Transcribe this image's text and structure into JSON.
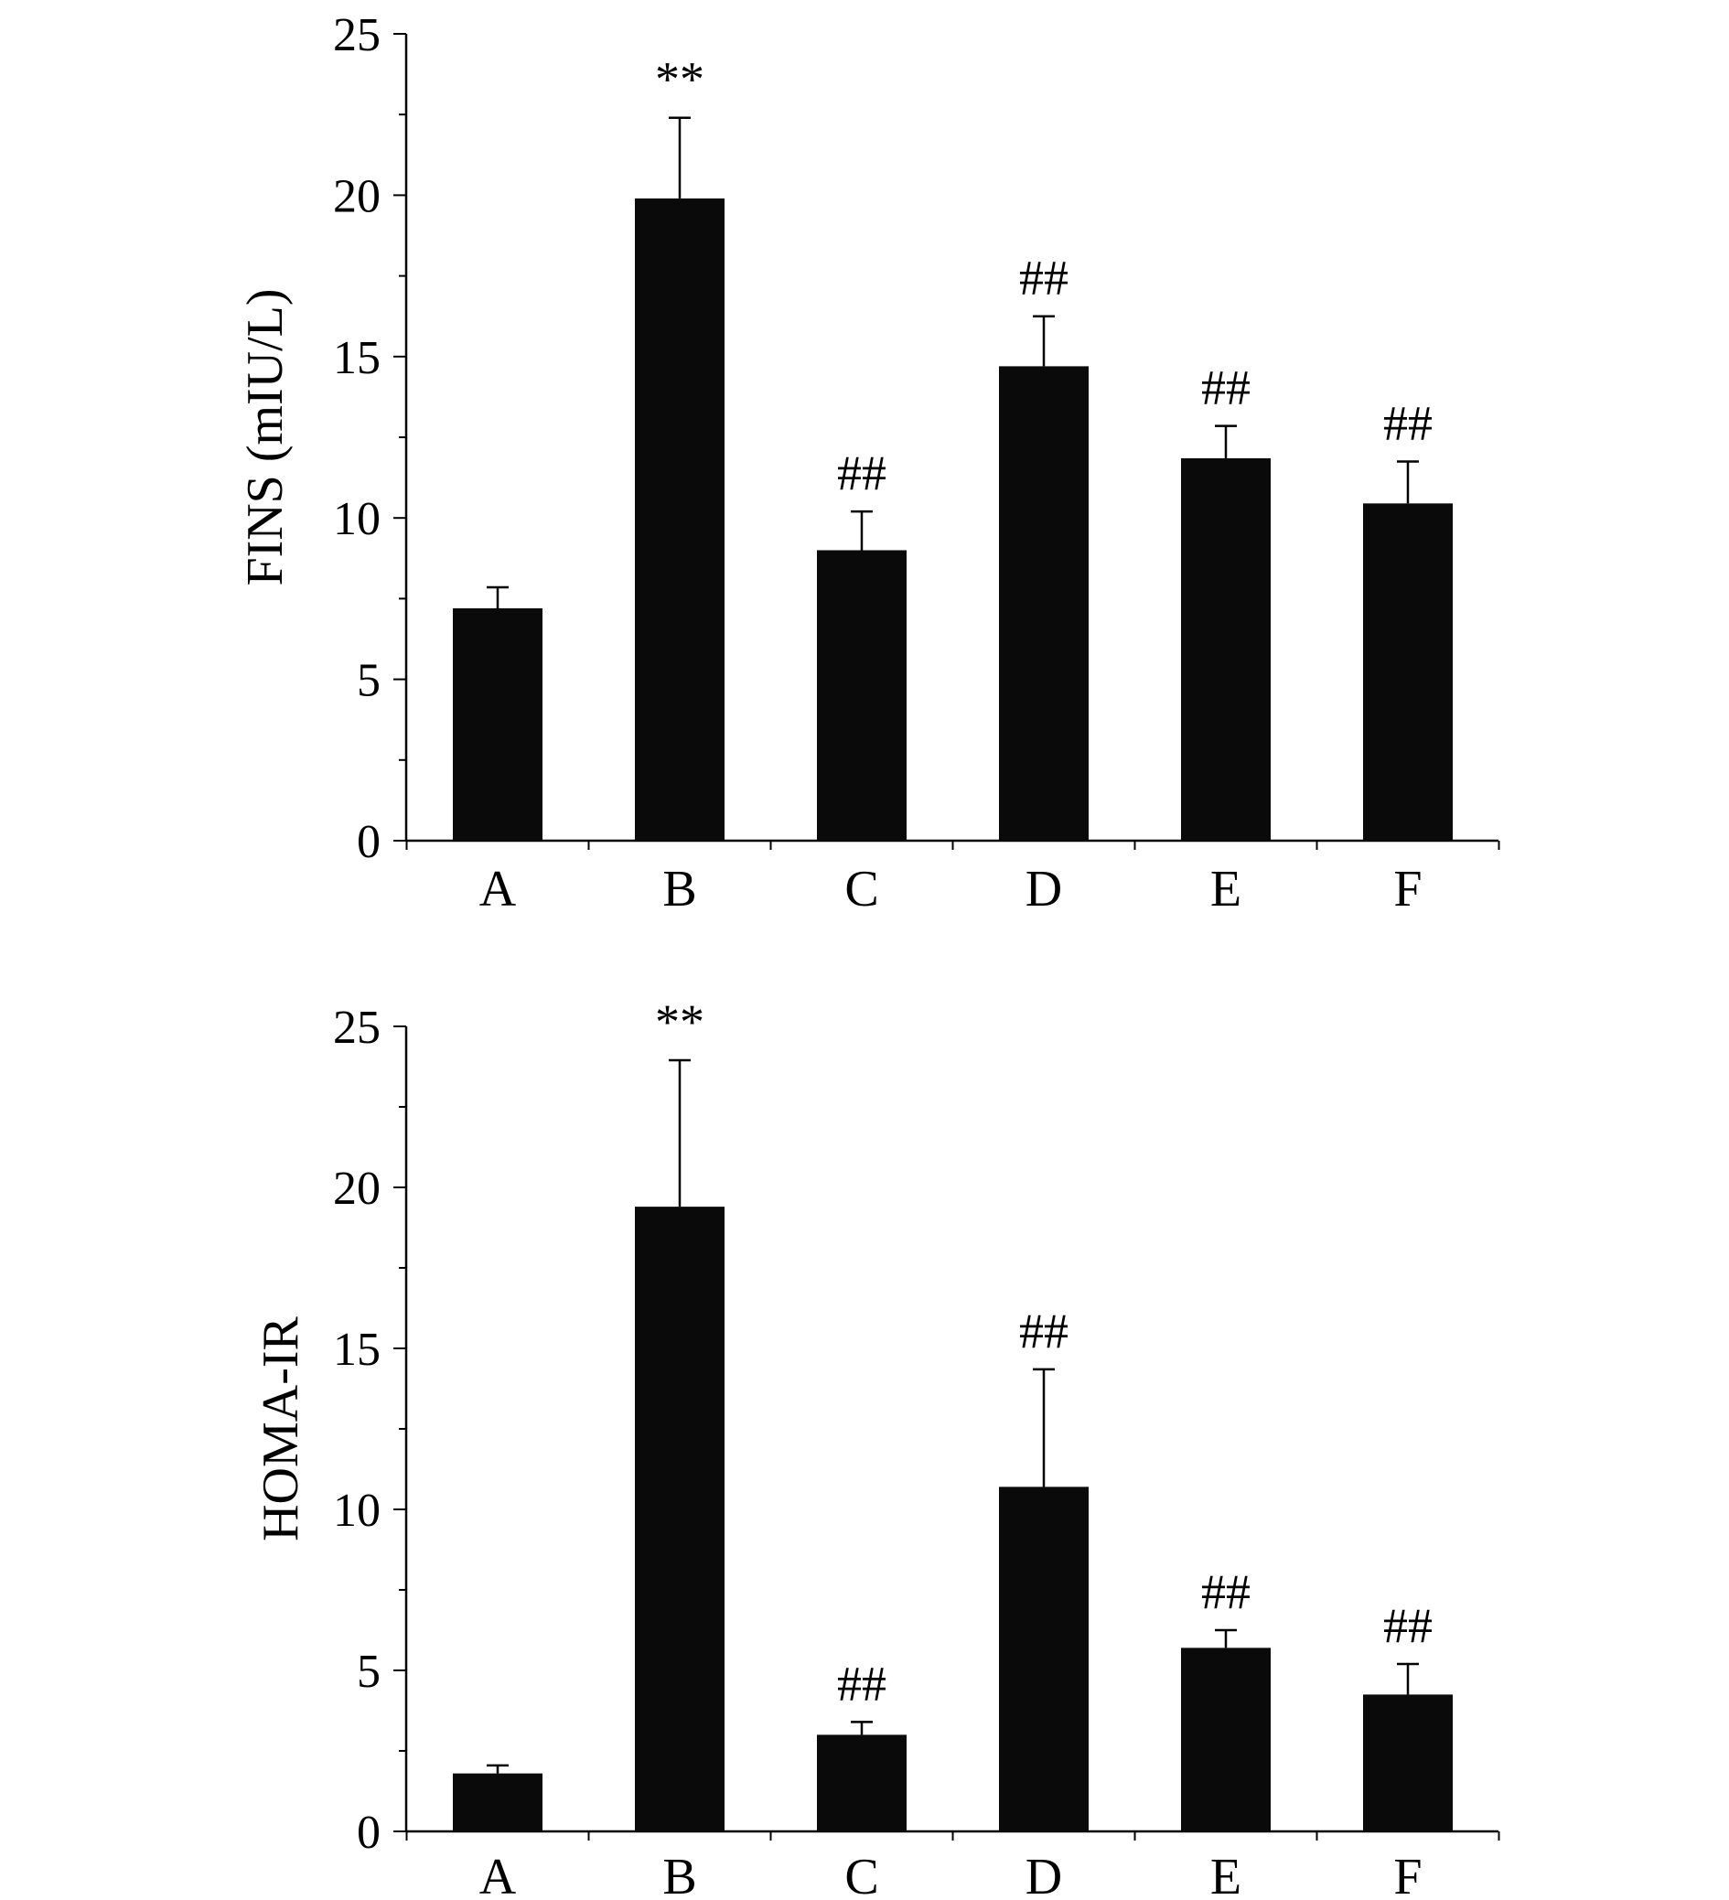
{
  "chart_data": [
    {
      "type": "bar",
      "categories": [
        "A",
        "B",
        "C",
        "D",
        "E",
        "F"
      ],
      "values": [
        7.2,
        19.9,
        9.0,
        14.7,
        11.85,
        10.45
      ],
      "errors": [
        0.65,
        2.5,
        1.2,
        1.55,
        1.0,
        1.3
      ],
      "annotations": [
        "",
        "**",
        "##",
        "##",
        "##",
        "##"
      ],
      "ylabel": "FINS (mIU/L)",
      "xlabel": "",
      "title": "",
      "ylim": [
        0,
        25
      ],
      "yticks": [
        "0",
        "5",
        "10",
        "15",
        "20",
        "25"
      ],
      "bar_color": "#0a0a0a",
      "grid": false
    },
    {
      "type": "bar",
      "categories": [
        "A",
        "B",
        "C",
        "D",
        "E",
        "F"
      ],
      "values": [
        1.8,
        19.4,
        3.0,
        10.7,
        5.7,
        4.25
      ],
      "errors": [
        0.25,
        4.55,
        0.4,
        3.65,
        0.55,
        0.95
      ],
      "annotations": [
        "",
        "**",
        "##",
        "##",
        "##",
        "##"
      ],
      "ylabel": "HOMA-IR",
      "xlabel": "",
      "title": "",
      "ylim": [
        0,
        25
      ],
      "yticks": [
        "0",
        "5",
        "10",
        "15",
        "20",
        "25"
      ],
      "bar_color": "#0a0a0a",
      "grid": false
    }
  ]
}
